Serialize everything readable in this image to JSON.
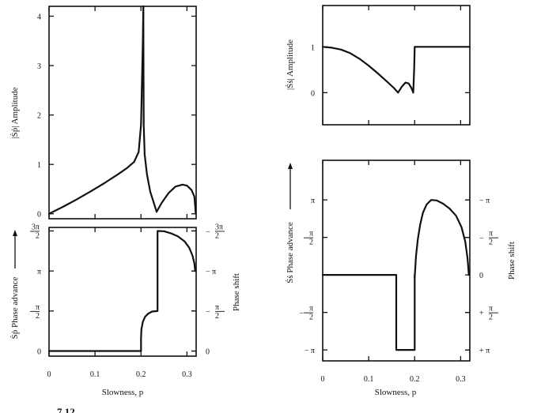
{
  "figure": {
    "caption_fragment": "7.12"
  },
  "chart_data": [
    {
      "id": "sp-amplitude",
      "type": "line",
      "ylabel": "|Ṡṗ| Amplitude",
      "xlim": [
        0,
        0.32
      ],
      "ylim": [
        -0.1,
        4.2
      ],
      "yticks": [
        {
          "v": 0,
          "t": "0"
        },
        {
          "v": 1,
          "t": "1"
        },
        {
          "v": 2,
          "t": "2"
        },
        {
          "v": 3,
          "t": "3"
        },
        {
          "v": 4,
          "t": "4"
        }
      ],
      "xticks": [
        0,
        0.1,
        0.2,
        0.3
      ],
      "segments": [
        [
          [
            0,
            0
          ],
          [
            0.03,
            0.14
          ],
          [
            0.06,
            0.29
          ],
          [
            0.09,
            0.45
          ],
          [
            0.12,
            0.62
          ],
          [
            0.15,
            0.8
          ],
          [
            0.17,
            0.93
          ],
          [
            0.185,
            1.05
          ],
          [
            0.195,
            1.25
          ],
          [
            0.2,
            1.8
          ],
          [
            0.202,
            2.6
          ],
          [
            0.204,
            3.5
          ],
          [
            0.205,
            4.2
          ]
        ],
        [
          [
            0.205,
            4.2
          ],
          [
            0.2055,
            3.2
          ],
          [
            0.206,
            1.8
          ],
          [
            0.208,
            1.2
          ],
          [
            0.213,
            0.8
          ],
          [
            0.22,
            0.45
          ],
          [
            0.227,
            0.25
          ],
          [
            0.234,
            0.04
          ],
          [
            0.245,
            0.22
          ],
          [
            0.26,
            0.42
          ],
          [
            0.275,
            0.55
          ],
          [
            0.29,
            0.59
          ],
          [
            0.3,
            0.57
          ],
          [
            0.31,
            0.48
          ],
          [
            0.316,
            0.35
          ],
          [
            0.318,
            0.15
          ],
          [
            0.319,
            0.0
          ]
        ]
      ]
    },
    {
      "id": "sp-phase",
      "type": "line",
      "ylabel": "Ṡṗ Phase advance",
      "ylabel_right": "Phase shift",
      "xlabel": "Slowness, p",
      "xlim": [
        0,
        0.32
      ],
      "ylim": [
        -0.2,
        4.85
      ],
      "yticks_left": [
        {
          "v": 0,
          "t": "0"
        },
        {
          "v": 1.5708,
          "t": "π/2"
        },
        {
          "v": 3.1416,
          "t": "π"
        },
        {
          "v": 4.7124,
          "t": "3π/2"
        }
      ],
      "yticks_right": [
        {
          "v": 0,
          "t": "0"
        },
        {
          "v": 1.5708,
          "t": "− π/2"
        },
        {
          "v": 3.1416,
          "t": "− π"
        },
        {
          "v": 4.7124,
          "t": "− 3π/2"
        }
      ],
      "xticks": [
        {
          "v": 0,
          "t": "0"
        },
        {
          "v": 0.1,
          "t": "0.1"
        },
        {
          "v": 0.2,
          "t": "0.2"
        },
        {
          "v": 0.3,
          "t": "0.3"
        }
      ],
      "segments": [
        [
          [
            0,
            0
          ],
          [
            0.2,
            0
          ],
          [
            0.2,
            0.5
          ],
          [
            0.201,
            0.85
          ],
          [
            0.204,
            1.15
          ],
          [
            0.209,
            1.35
          ],
          [
            0.216,
            1.47
          ],
          [
            0.224,
            1.55
          ],
          [
            0.236,
            1.57
          ],
          [
            0.236,
            4.71
          ],
          [
            0.25,
            4.7
          ],
          [
            0.265,
            4.62
          ],
          [
            0.28,
            4.5
          ],
          [
            0.295,
            4.3
          ],
          [
            0.305,
            4.05
          ],
          [
            0.312,
            3.75
          ],
          [
            0.316,
            3.45
          ],
          [
            0.318,
            3.14
          ]
        ]
      ]
    },
    {
      "id": "ss-amplitude",
      "type": "line",
      "ylabel": "|Ṡṡ| Amplitude",
      "xlim": [
        0,
        0.32
      ],
      "ylim": [
        -0.7,
        1.9
      ],
      "yticks": [
        {
          "v": 0,
          "t": "0"
        },
        {
          "v": 1,
          "t": "1"
        }
      ],
      "xticks": [
        0,
        0.1,
        0.2,
        0.3
      ],
      "segments": [
        [
          [
            0,
            1
          ],
          [
            0.02,
            0.98
          ],
          [
            0.04,
            0.94
          ],
          [
            0.06,
            0.86
          ],
          [
            0.08,
            0.74
          ],
          [
            0.1,
            0.59
          ],
          [
            0.12,
            0.42
          ],
          [
            0.14,
            0.24
          ],
          [
            0.155,
            0.1
          ],
          [
            0.164,
            0.0
          ],
          [
            0.172,
            0.13
          ],
          [
            0.18,
            0.22
          ],
          [
            0.187,
            0.2
          ],
          [
            0.193,
            0.1
          ],
          [
            0.197,
            0.0
          ],
          [
            0.199,
            0.55
          ],
          [
            0.2,
            1.0
          ],
          [
            0.32,
            1.0
          ]
        ]
      ]
    },
    {
      "id": "ss-phase",
      "type": "line",
      "ylabel": "Ṡṡ Phase advance",
      "ylabel_right": "Phase shift",
      "xlabel": "Slowness, p",
      "xlim": [
        0,
        0.32
      ],
      "ylim": [
        -3.6,
        4.8
      ],
      "yticks_left": [
        {
          "v": -3.1416,
          "t": "− π"
        },
        {
          "v": -1.5708,
          "t": "− π/2"
        },
        {
          "v": 1.5708,
          "t": "π/2"
        },
        {
          "v": 3.1416,
          "t": "π"
        }
      ],
      "yticks_right": [
        {
          "v": -3.1416,
          "t": "+ π"
        },
        {
          "v": -1.5708,
          "t": "+ π/2"
        },
        {
          "v": 0,
          "t": "0"
        },
        {
          "v": 1.5708,
          "t": "− π/2"
        },
        {
          "v": 3.1416,
          "t": "− π"
        }
      ],
      "xticks": [
        {
          "v": 0,
          "t": "0"
        },
        {
          "v": 0.1,
          "t": "0.1"
        },
        {
          "v": 0.2,
          "t": "0.2"
        },
        {
          "v": 0.3,
          "t": "0.3"
        }
      ],
      "segments": [
        [
          [
            0,
            0
          ],
          [
            0.16,
            0
          ],
          [
            0.16,
            -3.14
          ],
          [
            0.2,
            -3.14
          ],
          [
            0.2,
            0
          ]
        ],
        [
          [
            0.2,
            -0.1
          ],
          [
            0.203,
            0.8
          ],
          [
            0.207,
            1.5
          ],
          [
            0.212,
            2.1
          ],
          [
            0.218,
            2.6
          ],
          [
            0.226,
            2.95
          ],
          [
            0.236,
            3.14
          ],
          [
            0.248,
            3.12
          ],
          [
            0.262,
            2.98
          ],
          [
            0.276,
            2.78
          ],
          [
            0.29,
            2.48
          ],
          [
            0.302,
            2.0
          ],
          [
            0.31,
            1.4
          ],
          [
            0.315,
            0.7
          ],
          [
            0.318,
            0.0
          ]
        ]
      ]
    }
  ]
}
